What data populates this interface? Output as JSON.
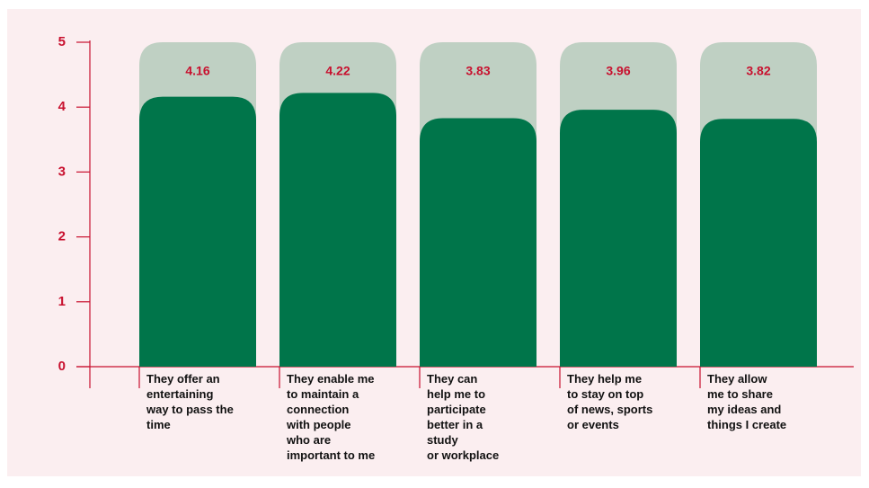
{
  "chart_data": {
    "type": "bar",
    "categories": [
      "They offer an\nentertaining\nway to pass the\ntime",
      "They enable me\nto maintain a\nconnection\nwith people\nwho are\nimportant to me",
      "They can\nhelp me to\nparticipate\nbetter in a\nstudy\nor workplace",
      "They help me\nto stay on top\nof news, sports\nor events",
      "They allow\nme to share\nmy ideas and\nthings I create"
    ],
    "values": [
      4.16,
      4.22,
      3.83,
      3.96,
      3.82
    ],
    "color": "#00754a",
    "track_color": "#bfd0c3",
    "label_color": "#c8102e",
    "ylim": [
      0,
      5
    ],
    "yticks": [
      0,
      1,
      2,
      3,
      4,
      5
    ]
  }
}
